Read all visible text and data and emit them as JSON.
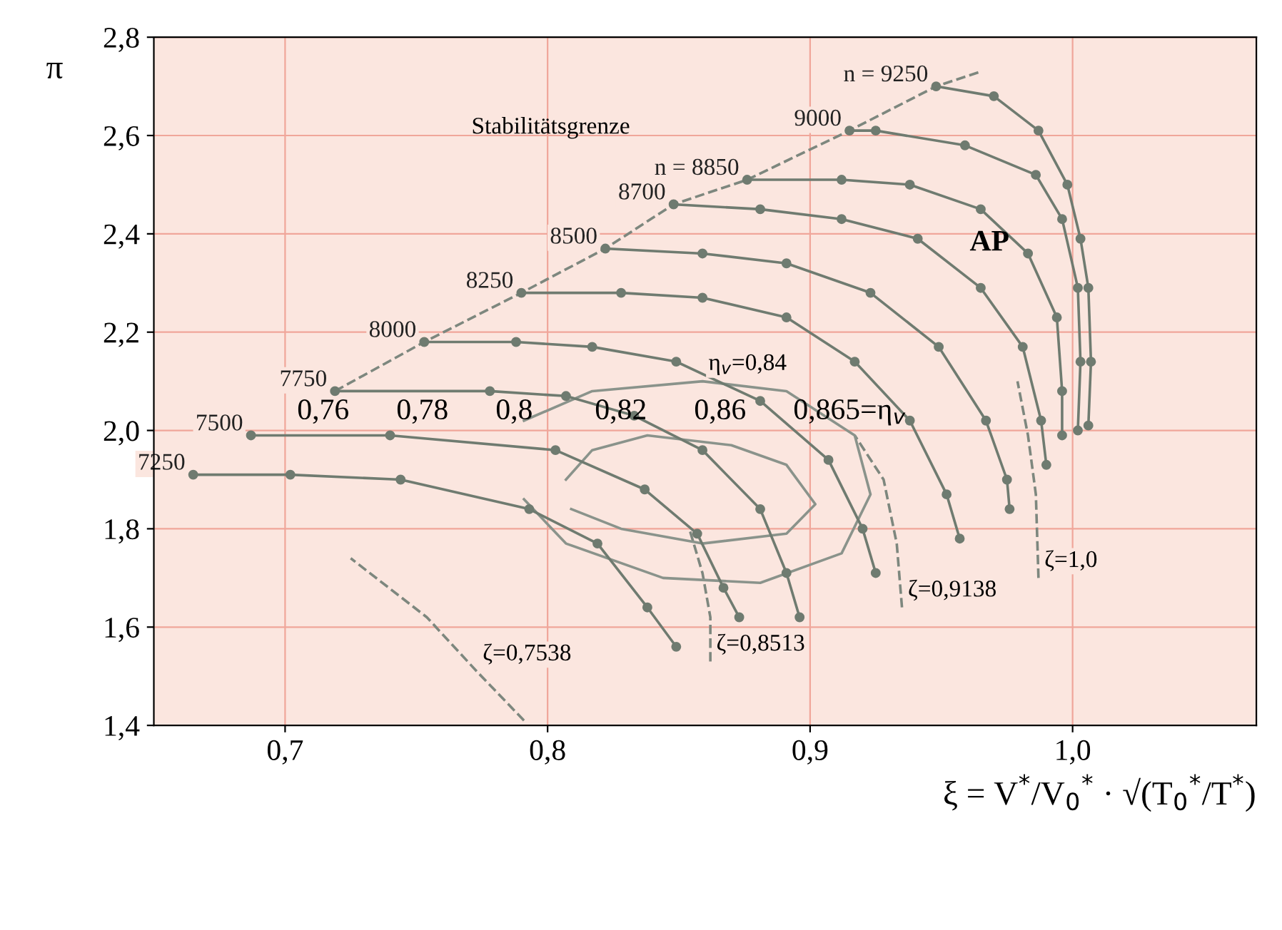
{
  "chart_data": {
    "type": "line",
    "xlabel": "ξ = V$^{*}$/V$_{0}$$^{*}$ · √(T$_{0}$$^{*}$/T$^{*}$)",
    "ylabel": "π",
    "xlim": [
      0.65,
      1.07
    ],
    "ylim": [
      1.4,
      2.8
    ],
    "xticks": [
      {
        "value": 0.7,
        "label": "0,7"
      },
      {
        "value": 0.8,
        "label": "0,8"
      },
      {
        "value": 0.9,
        "label": "0,9"
      },
      {
        "value": 1.0,
        "label": "1,0"
      }
    ],
    "yticks": [
      {
        "value": 1.4,
        "label": "1,4"
      },
      {
        "value": 1.6,
        "label": "1,6"
      },
      {
        "value": 1.8,
        "label": "1,8"
      },
      {
        "value": 2.0,
        "label": "2,0"
      },
      {
        "value": 2.2,
        "label": "2,2"
      },
      {
        "value": 2.4,
        "label": "2,4"
      },
      {
        "value": 2.6,
        "label": "2,6"
      },
      {
        "value": 2.8,
        "label": "2,8"
      }
    ],
    "grid": true,
    "marker": "circle",
    "line_style": "solid",
    "series": [
      {
        "name": "7250",
        "color": "#6f7b70",
        "x": [
          0.665,
          0.702,
          0.744,
          0.793,
          0.819,
          0.838,
          0.849
        ],
        "values": [
          1.91,
          1.91,
          1.9,
          1.84,
          1.77,
          1.64,
          1.56
        ]
      },
      {
        "name": "7500",
        "color": "#6f7b70",
        "x": [
          0.687,
          0.74,
          0.803,
          0.837,
          0.857,
          0.867,
          0.873
        ],
        "values": [
          1.99,
          1.99,
          1.96,
          1.88,
          1.79,
          1.68,
          1.62
        ]
      },
      {
        "name": "7750",
        "color": "#6f7b70",
        "x": [
          0.719,
          0.778,
          0.807,
          0.833,
          0.859,
          0.881,
          0.891,
          0.896
        ],
        "values": [
          2.08,
          2.08,
          2.07,
          2.03,
          1.96,
          1.84,
          1.71,
          1.62
        ]
      },
      {
        "name": "8000",
        "color": "#6f7b70",
        "x": [
          0.753,
          0.788,
          0.817,
          0.849,
          0.881,
          0.907,
          0.92,
          0.925
        ],
        "values": [
          2.18,
          2.18,
          2.17,
          2.14,
          2.06,
          1.94,
          1.8,
          1.71
        ]
      },
      {
        "name": "8250",
        "color": "#6f7b70",
        "x": [
          0.79,
          0.828,
          0.859,
          0.891,
          0.917,
          0.938,
          0.952,
          0.957
        ],
        "values": [
          2.28,
          2.28,
          2.27,
          2.23,
          2.14,
          2.02,
          1.87,
          1.78
        ]
      },
      {
        "name": "8500",
        "color": "#6f7b70",
        "x": [
          0.822,
          0.859,
          0.891,
          0.923,
          0.949,
          0.967,
          0.975,
          0.976
        ],
        "values": [
          2.37,
          2.36,
          2.34,
          2.28,
          2.17,
          2.02,
          1.9,
          1.84
        ]
      },
      {
        "name": "8700",
        "color": "#6f7b70",
        "x": [
          0.848,
          0.881,
          0.912,
          0.941,
          0.965,
          0.981,
          0.988,
          0.99
        ],
        "values": [
          2.46,
          2.45,
          2.43,
          2.39,
          2.29,
          2.17,
          2.02,
          1.93
        ]
      },
      {
        "name": "n = 8850",
        "color": "#6f7b70",
        "x": [
          0.876,
          0.912,
          0.938,
          0.965,
          0.983,
          0.994,
          0.996,
          0.996
        ],
        "values": [
          2.51,
          2.51,
          2.5,
          2.45,
          2.36,
          2.23,
          2.08,
          1.99
        ]
      },
      {
        "name": "9000",
        "color": "#6f7b70",
        "x": [
          0.915,
          0.925,
          0.959,
          0.986,
          0.996,
          1.002,
          1.003,
          1.002
        ],
        "values": [
          2.61,
          2.61,
          2.58,
          2.52,
          2.43,
          2.29,
          2.14,
          2.0
        ]
      },
      {
        "name": "n = 9250",
        "color": "#6f7b70",
        "x": [
          0.948,
          0.97,
          0.987,
          0.998,
          1.003,
          1.006,
          1.007,
          1.006
        ],
        "values": [
          2.7,
          2.68,
          2.61,
          2.5,
          2.39,
          2.29,
          2.14,
          2.01
        ]
      },
      {
        "color": "#7d877e",
        "marker": "none",
        "line_style": "dashed",
        "x": [
          0.719,
          0.753,
          0.79,
          0.822,
          0.848,
          0.876,
          0.915,
          0.948,
          0.965
        ],
        "values": [
          2.08,
          2.18,
          2.28,
          2.37,
          2.46,
          2.51,
          2.61,
          2.7,
          2.73
        ]
      },
      {
        "color": "#7d877e",
        "marker": "none",
        "line_style": "dashed",
        "x": [
          0.791,
          0.773,
          0.754,
          0.725
        ],
        "values": [
          1.41,
          1.51,
          1.62,
          1.74
        ]
      },
      {
        "color": "#7d877e",
        "marker": "none",
        "line_style": "dashed",
        "x": [
          0.862,
          0.862,
          0.859,
          0.854
        ],
        "values": [
          1.53,
          1.62,
          1.71,
          1.8
        ]
      },
      {
        "color": "#7d877e",
        "marker": "none",
        "line_style": "dashed",
        "x": [
          0.935,
          0.933,
          0.928,
          0.917
        ],
        "values": [
          1.64,
          1.77,
          1.9,
          1.99
        ]
      },
      {
        "color": "#7d877e",
        "marker": "none",
        "line_style": "dashed",
        "x": [
          0.987,
          0.986,
          0.983,
          0.979
        ],
        "values": [
          1.7,
          1.87,
          1.99,
          2.1
        ]
      },
      {
        "color": "#8a938b",
        "marker": "none",
        "x": [
          0.807,
          0.817,
          0.838,
          0.87,
          0.891,
          0.902,
          0.891,
          0.859,
          0.828,
          0.809
        ],
        "values": [
          1.9,
          1.96,
          1.99,
          1.97,
          1.93,
          1.85,
          1.79,
          1.77,
          1.8,
          1.84
        ]
      },
      {
        "color": "#8a938b",
        "marker": "none",
        "x": [
          0.791,
          0.817,
          0.859,
          0.891,
          0.917,
          0.923,
          0.912,
          0.881,
          0.844,
          0.807,
          0.791
        ],
        "values": [
          2.02,
          2.08,
          2.1,
          2.08,
          1.99,
          1.87,
          1.75,
          1.69,
          1.7,
          1.77,
          1.86
        ]
      }
    ],
    "annotations": [
      "Stabilitätsgrenze",
      {
        "text": "ζ=0,7538",
        "x": 0.773,
        "y": 1.51
      },
      {
        "text": "ζ=0,8513",
        "x": 0.862,
        "y": 1.53
      },
      {
        "text": "ζ=0,9138",
        "x": 0.935,
        "y": 1.64
      },
      {
        "text": "ζ=1,0",
        "x": 0.987,
        "y": 1.7
      },
      {
        "text": "η$_{v}$=0,84",
        "x": 0.859,
        "y": 2.1
      },
      "0,76",
      "0,78",
      "0,8",
      "0,82",
      "0,86",
      "0,865=η$_{v}$",
      "AP"
    ]
  }
}
